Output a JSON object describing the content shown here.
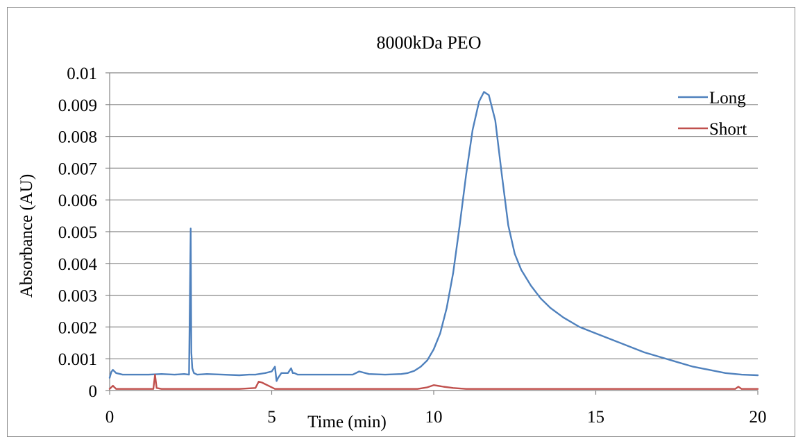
{
  "chart_data": {
    "type": "line",
    "title": "8000kDa PEO",
    "xlabel": "Time (min)",
    "ylabel": "Absorbance (AU)",
    "xlim": [
      0,
      20
    ],
    "ylim": [
      0,
      0.01
    ],
    "x_ticks": [
      0,
      5,
      10,
      15,
      20
    ],
    "x_tick_labels": [
      "0",
      "5",
      "10",
      "15",
      "20"
    ],
    "y_ticks": [
      0,
      0.001,
      0.002,
      0.003,
      0.004,
      0.005,
      0.006,
      0.007,
      0.008,
      0.009,
      0.01
    ],
    "y_tick_labels": [
      "0",
      "0.001",
      "0.002",
      "0.003",
      "0.004",
      "0.005",
      "0.006",
      "0.007",
      "0.008",
      "0.009",
      "0.01"
    ],
    "grid": "horizontal",
    "legend": "top-right",
    "series": [
      {
        "name": "Long",
        "color": "#4f81bd",
        "x": [
          0,
          0.05,
          0.1,
          0.2,
          0.4,
          0.8,
          1.2,
          1.6,
          2.0,
          2.3,
          2.45,
          2.5,
          2.52,
          2.55,
          2.6,
          2.7,
          3.0,
          3.5,
          4.0,
          4.3,
          4.5,
          4.8,
          5.0,
          5.1,
          5.15,
          5.2,
          5.3,
          5.5,
          5.6,
          5.65,
          5.7,
          5.8,
          6.0,
          6.5,
          7.0,
          7.5,
          7.7,
          8.0,
          8.5,
          9.0,
          9.2,
          9.4,
          9.6,
          9.8,
          10.0,
          10.2,
          10.4,
          10.6,
          10.8,
          11.0,
          11.2,
          11.4,
          11.55,
          11.7,
          11.9,
          12.1,
          12.3,
          12.5,
          12.7,
          13.0,
          13.3,
          13.6,
          14.0,
          14.5,
          15.0,
          15.5,
          16.0,
          16.5,
          17.0,
          17.5,
          18.0,
          18.5,
          19.0,
          19.5,
          20.0
        ],
        "y": [
          0.0004,
          0.00058,
          0.00065,
          0.00055,
          0.0005,
          0.0005,
          0.0005,
          0.00052,
          0.0005,
          0.00052,
          0.0005,
          0.0051,
          0.0012,
          0.0007,
          0.00055,
          0.0005,
          0.00052,
          0.0005,
          0.00048,
          0.0005,
          0.0005,
          0.00055,
          0.0006,
          0.00075,
          0.0003,
          0.0004,
          0.00055,
          0.00055,
          0.0007,
          0.00055,
          0.00055,
          0.0005,
          0.0005,
          0.0005,
          0.0005,
          0.0005,
          0.0006,
          0.00052,
          0.0005,
          0.00052,
          0.00055,
          0.00062,
          0.00075,
          0.00095,
          0.0013,
          0.0018,
          0.0026,
          0.0037,
          0.0052,
          0.0068,
          0.0082,
          0.0091,
          0.0094,
          0.0093,
          0.0085,
          0.0068,
          0.0052,
          0.0043,
          0.0038,
          0.0033,
          0.0029,
          0.0026,
          0.0023,
          0.002,
          0.0018,
          0.0016,
          0.0014,
          0.0012,
          0.00105,
          0.0009,
          0.00075,
          0.00065,
          0.00055,
          0.0005,
          0.00048
        ]
      },
      {
        "name": "Short",
        "color": "#c0504d",
        "x": [
          0,
          0.1,
          0.2,
          0.4,
          0.8,
          1.2,
          1.35,
          1.4,
          1.45,
          1.6,
          2.0,
          2.5,
          3.0,
          3.5,
          4.0,
          4.5,
          4.6,
          4.7,
          4.9,
          5.1,
          5.5,
          6.0,
          7.0,
          8.0,
          9.0,
          9.5,
          9.8,
          10.0,
          10.3,
          10.6,
          11.0,
          12.0,
          13.0,
          14.0,
          15.0,
          16.0,
          17.0,
          18.0,
          19.0,
          19.3,
          19.4,
          19.5,
          20.0
        ],
        "y": [
          5e-05,
          0.00015,
          5e-05,
          5e-05,
          5e-05,
          5e-05,
          5e-05,
          0.0005,
          8e-05,
          5e-05,
          5e-05,
          5e-05,
          5e-05,
          5e-05,
          5e-05,
          8e-05,
          0.00028,
          0.00025,
          0.00015,
          5e-05,
          5e-05,
          5e-05,
          5e-05,
          5e-05,
          5e-05,
          5e-05,
          0.0001,
          0.00017,
          0.00012,
          8e-05,
          5e-05,
          5e-05,
          5e-05,
          5e-05,
          5e-05,
          5e-05,
          5e-05,
          5e-05,
          5e-05,
          5e-05,
          0.00012,
          5e-05,
          5e-05
        ]
      }
    ]
  }
}
